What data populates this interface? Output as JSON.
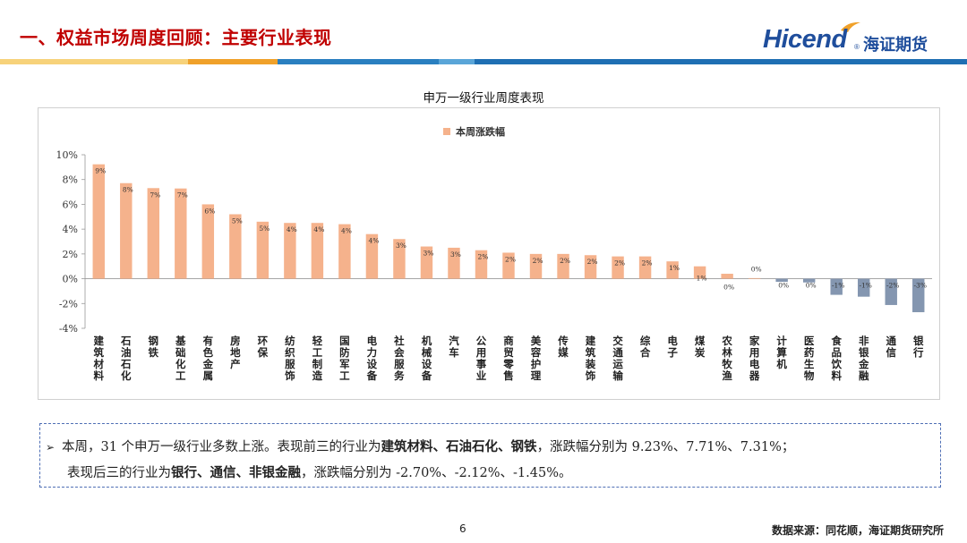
{
  "header": {
    "title": "一、权益市场周度回顾：主要行业表现",
    "logo_en": "Hicend",
    "logo_reg": "®",
    "logo_cn": "海证期货"
  },
  "colors": {
    "title_red": "#c00000",
    "brand_blue": "#1f4e9c",
    "bar_positive": "#f5b28c",
    "bar_negative": "#8496b0",
    "bar_strip": [
      "#f7d27a",
      "#f0a12a",
      "#2a7fc0",
      "#5aa5d8",
      "#1f6fb3"
    ]
  },
  "chart_data": {
    "type": "bar",
    "title": "申万一级行业周度表现",
    "legend": "本周涨跌幅",
    "legend_position": "top-center",
    "ylim": [
      -4,
      10
    ],
    "yticks": [
      "10%",
      "8%",
      "6%",
      "4%",
      "2%",
      "0%",
      "-2%",
      "-4%"
    ],
    "ytick_values": [
      10,
      8,
      6,
      4,
      2,
      0,
      -2,
      -4
    ],
    "categories": [
      "建筑材料",
      "石油石化",
      "钢铁",
      "基础化工",
      "有色金属",
      "房地产",
      "环保",
      "纺织服饰",
      "轻工制造",
      "国防军工",
      "电力设备",
      "社会服务",
      "机械设备",
      "汽车",
      "公用事业",
      "商贸零售",
      "美容护理",
      "传媒",
      "建筑装饰",
      "交通运输",
      "综合",
      "电子",
      "煤炭",
      "农林牧渔",
      "家用电器",
      "计算机",
      "医药生物",
      "食品饮料",
      "非银金融",
      "通信",
      "银行"
    ],
    "values": [
      9.23,
      7.71,
      7.31,
      7.28,
      6.0,
      5.2,
      4.6,
      4.5,
      4.5,
      4.4,
      3.6,
      3.2,
      2.6,
      2.5,
      2.3,
      2.1,
      2.0,
      2.0,
      1.9,
      1.8,
      1.8,
      1.4,
      1.0,
      0.4,
      0.05,
      -0.25,
      -0.3,
      -1.3,
      -1.45,
      -2.12,
      -2.7
    ],
    "data_labels": [
      "9%",
      "8%",
      "7%",
      "7%",
      "6%",
      "5%",
      "5%",
      "4%",
      "4%",
      "4%",
      "4%",
      "3%",
      "3%",
      "3%",
      "2%",
      "2%",
      "2%",
      "2%",
      "2%",
      "2%",
      "2%",
      "1%",
      "1%",
      "0%",
      "0%",
      "0%",
      "0%",
      "-1%",
      "-1%",
      "-2%",
      "-3%"
    ],
    "xlabel": "",
    "ylabel": ""
  },
  "summary": {
    "arrow": "➢",
    "line1_a": "本周，31 个申万一级行业多数上涨。表现前三的行业为",
    "line1_b": "建筑材料、石油石化、钢铁",
    "line1_c": "，涨跌幅分别为 9.23%、7.71%、7.31%；",
    "line2_a": "表现后三的行业为",
    "line2_b": "银行、通信、非银金融",
    "line2_c": "，涨跌幅分别为 -2.70%、-2.12%、-1.45%。"
  },
  "footer": {
    "page": "6",
    "source": "数据来源：同花顺，海证期货研究所"
  }
}
